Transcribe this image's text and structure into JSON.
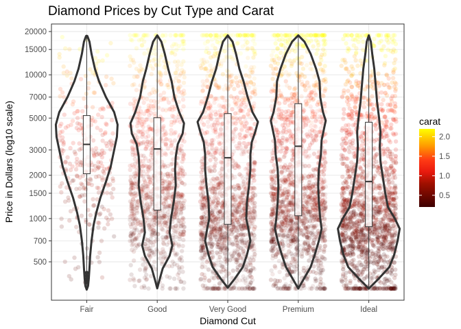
{
  "chart_data": {
    "type": "violin",
    "title": "Diamond Prices by Cut Type and Carat",
    "xlabel": "Diamond Cut",
    "ylabel": "Price in Dollars (log10 scale)",
    "y_scale": "log10",
    "ylim": [
      300,
      20000
    ],
    "y_ticks": [
      500,
      700,
      1000,
      1500,
      2000,
      3000,
      5000,
      7000,
      10000,
      15000,
      20000
    ],
    "y_tick_labels": [
      "500",
      "700",
      "1000",
      "1500",
      "2000",
      "3000",
      "5000",
      "7000",
      "10000",
      "15000",
      "20000"
    ],
    "categories": [
      "Fair",
      "Good",
      "Very Good",
      "Premium",
      "Ideal"
    ],
    "boxplots": [
      {
        "category": "Fair",
        "min": 337,
        "q1": 2050,
        "median": 3282,
        "q3": 5206,
        "max": 18574
      },
      {
        "category": "Good",
        "min": 327,
        "q1": 1145,
        "median": 3050,
        "q3": 5028,
        "max": 18788
      },
      {
        "category": "Very Good",
        "min": 336,
        "q1": 912,
        "median": 2648,
        "q3": 5373,
        "max": 18818
      },
      {
        "category": "Premium",
        "min": 326,
        "q1": 1046,
        "median": 3185,
        "q3": 6296,
        "max": 18823
      },
      {
        "category": "Ideal",
        "min": 326,
        "q1": 878,
        "median": 1810,
        "q3": 4678,
        "max": 18806
      }
    ],
    "legend": {
      "title": "carat",
      "position": "right",
      "labels": [
        "2.0",
        "1.5",
        "1.0",
        "0.5"
      ],
      "values": [
        2.0,
        1.5,
        1.0,
        0.5
      ],
      "range": [
        0.2,
        2.2
      ],
      "colors": {
        "low": "#4a0000",
        "mid_low": "#c8200a",
        "mid": "#ff2a1a",
        "mid_high": "#ff9a00",
        "high": "#ffff00"
      }
    },
    "grid": true
  }
}
